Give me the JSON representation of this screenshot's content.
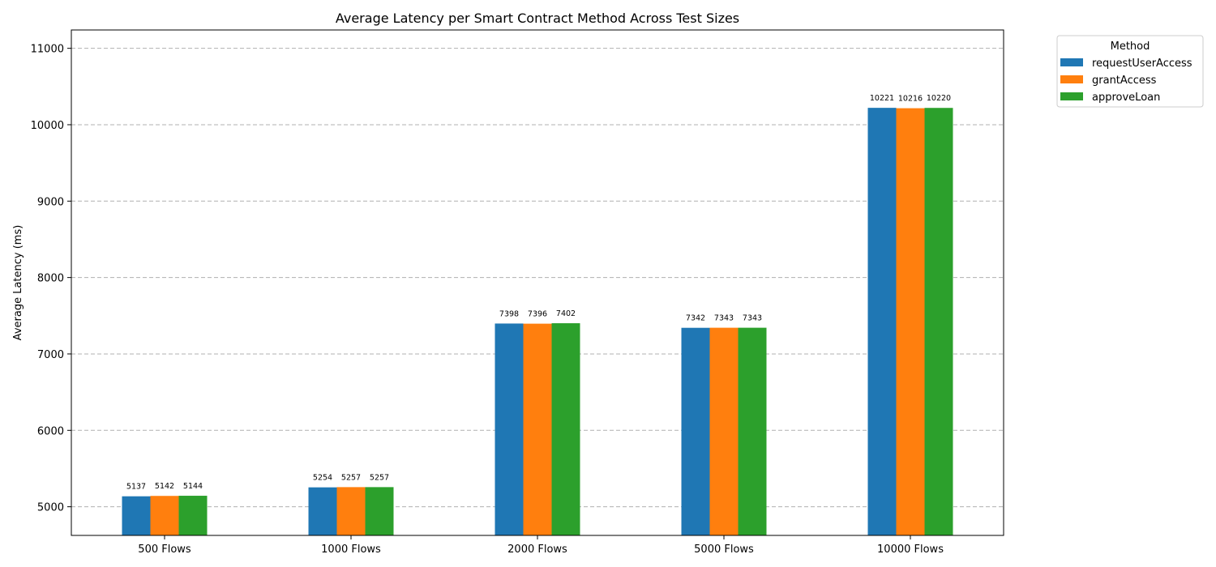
{
  "chart_data": {
    "type": "bar",
    "title": "Average Latency per Smart Contract Method Across Test Sizes",
    "xlabel": "",
    "ylabel": "Average Latency (ms)",
    "categories": [
      "500 Flows",
      "1000 Flows",
      "2000 Flows",
      "5000 Flows",
      "10000 Flows"
    ],
    "series": [
      {
        "name": "requestUserAccess",
        "color": "#1f77b4",
        "values": [
          5137,
          5254,
          7398,
          7342,
          10221
        ]
      },
      {
        "name": "grantAccess",
        "color": "#ff7f0e",
        "values": [
          5142,
          5257,
          7396,
          7343,
          10216
        ]
      },
      {
        "name": "approveLoan",
        "color": "#2ca02c",
        "values": [
          5144,
          5257,
          7402,
          7343,
          10220
        ]
      }
    ],
    "ylim": [
      4625,
      11240
    ],
    "yticks": [
      5000,
      6000,
      7000,
      8000,
      9000,
      10000,
      11000
    ],
    "grid": "y-dashed",
    "legend": {
      "title": "Method",
      "placement": "outside-top-right"
    }
  }
}
